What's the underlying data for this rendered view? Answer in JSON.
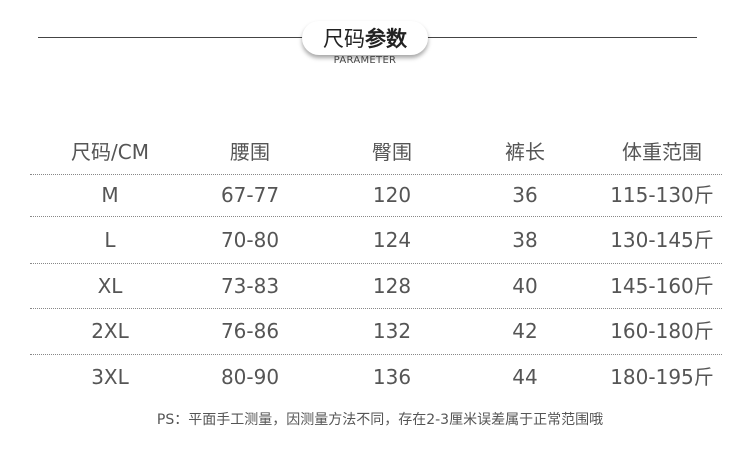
{
  "title": {
    "light": "尺码",
    "bold": "参数",
    "subtitle": "PARAMETER"
  },
  "table": {
    "headers": [
      "尺码/CM",
      "腰围",
      "臀围",
      "裤长",
      "体重范围"
    ],
    "rows": [
      [
        "M",
        "67-77",
        "120",
        "36",
        "115-130斤"
      ],
      [
        "L",
        "70-80",
        "124",
        "38",
        "130-145斤"
      ],
      [
        "XL",
        "73-83",
        "128",
        "40",
        "145-160斤"
      ],
      [
        "2XL",
        "76-86",
        "132",
        "42",
        "160-180斤"
      ],
      [
        "3XL",
        "80-90",
        "136",
        "44",
        "180-195斤"
      ]
    ]
  },
  "note": "PS：平面手工测量，因测量方法不同，存在2-3厘米误差属于正常范围哦"
}
